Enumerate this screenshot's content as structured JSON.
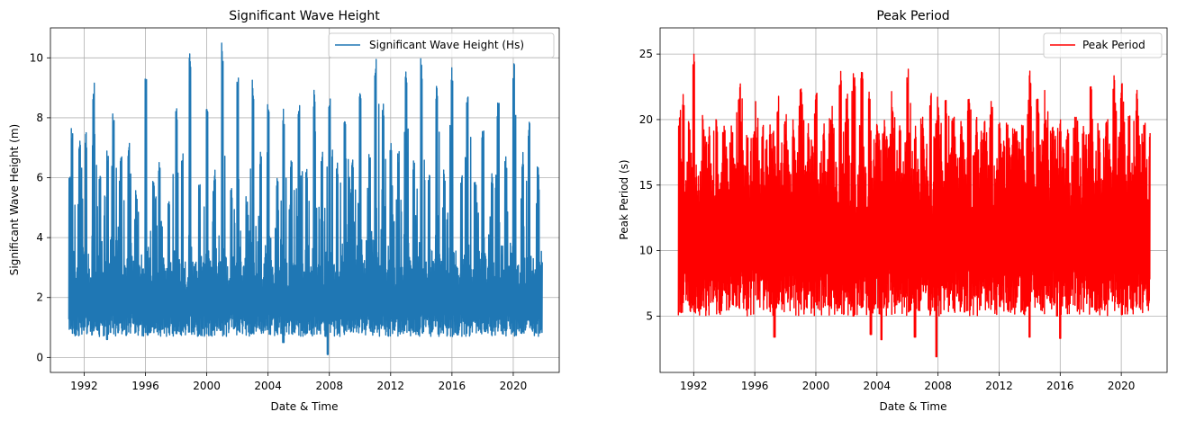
{
  "chart_data": [
    {
      "type": "line",
      "title": "Significant Wave Height",
      "xlabel": "Date & Time",
      "ylabel": "Significant Wave Height (m)",
      "xlim": [
        1989.8,
        2023.0
      ],
      "ylim": [
        -0.5,
        11.0
      ],
      "xticks": [
        1992,
        1996,
        2000,
        2004,
        2008,
        2012,
        2016,
        2020
      ],
      "yticks": [
        0,
        2,
        4,
        6,
        8,
        10
      ],
      "grid": true,
      "legend_position": "top-right",
      "series": [
        {
          "name": "Significant Wave Height (Hs)",
          "color": "#1f77b4",
          "x_range": [
            1991.0,
            2021.9
          ],
          "baseline_min": 0.7,
          "baseline_max": 3.0,
          "peaks": [
            [
              1991.0,
              6.3
            ],
            [
              1991.2,
              7.7
            ],
            [
              1991.7,
              7.4
            ],
            [
              1992.1,
              7.5
            ],
            [
              1992.6,
              9.2
            ],
            [
              1993.0,
              6.4
            ],
            [
              1993.5,
              6.9
            ],
            [
              1993.9,
              8.3
            ],
            [
              1994.4,
              6.7
            ],
            [
              1994.9,
              7.2
            ],
            [
              1995.4,
              5.6
            ],
            [
              1996.0,
              9.5
            ],
            [
              1996.5,
              6.0
            ],
            [
              1996.9,
              6.6
            ],
            [
              1997.5,
              5.3
            ],
            [
              1998.0,
              8.3
            ],
            [
              1998.4,
              6.9
            ],
            [
              1998.9,
              10.4
            ],
            [
              1999.5,
              5.9
            ],
            [
              2000.0,
              8.9
            ],
            [
              2000.5,
              6.3
            ],
            [
              2001.0,
              10.5
            ],
            [
              2001.6,
              5.7
            ],
            [
              2002.0,
              9.4
            ],
            [
              2002.6,
              5.4
            ],
            [
              2003.0,
              9.3
            ],
            [
              2003.5,
              6.9
            ],
            [
              2004.0,
              8.6
            ],
            [
              2004.6,
              6.2
            ],
            [
              2005.0,
              8.3
            ],
            [
              2005.5,
              6.6
            ],
            [
              2006.0,
              8.6
            ],
            [
              2006.5,
              6.5
            ],
            [
              2007.0,
              9.0
            ],
            [
              2007.5,
              6.9
            ],
            [
              2008.0,
              8.7
            ],
            [
              2008.5,
              6.6
            ],
            [
              2009.0,
              8.3
            ],
            [
              2009.5,
              6.8
            ],
            [
              2010.0,
              9.3
            ],
            [
              2010.6,
              6.8
            ],
            [
              2011.0,
              10.1
            ],
            [
              2011.5,
              8.6
            ],
            [
              2012.0,
              7.3
            ],
            [
              2012.5,
              7.0
            ],
            [
              2013.0,
              9.9
            ],
            [
              2013.5,
              6.6
            ],
            [
              2014.0,
              10.0
            ],
            [
              2014.5,
              6.2
            ],
            [
              2015.0,
              9.3
            ],
            [
              2015.5,
              6.3
            ],
            [
              2016.0,
              9.8
            ],
            [
              2016.6,
              6.2
            ],
            [
              2017.0,
              8.7
            ],
            [
              2017.5,
              6.0
            ],
            [
              2018.0,
              7.7
            ],
            [
              2018.6,
              6.3
            ],
            [
              2019.0,
              8.5
            ],
            [
              2019.5,
              6.7
            ],
            [
              2020.0,
              10.0
            ],
            [
              2020.6,
              6.9
            ],
            [
              2021.0,
              8.0
            ],
            [
              2021.6,
              6.4
            ]
          ],
          "dips": [
            [
              2007.9,
              0.1
            ],
            [
              2005.0,
              0.5
            ],
            [
              1993.5,
              0.6
            ]
          ]
        }
      ]
    },
    {
      "type": "line",
      "title": "Peak Period",
      "xlabel": "Date & Time",
      "ylabel": "Peak Period (s)",
      "xlim": [
        1989.8,
        2023.0
      ],
      "ylim": [
        0.7,
        27.0
      ],
      "xticks": [
        1992,
        1996,
        2000,
        2004,
        2008,
        2012,
        2016,
        2020
      ],
      "yticks": [
        5,
        10,
        15,
        20,
        25
      ],
      "grid": true,
      "legend_position": "top-right",
      "series": [
        {
          "name": "Peak Period",
          "color": "#ff0000",
          "x_range": [
            1991.0,
            2021.9
          ],
          "baseline_min": 5.0,
          "baseline_max": 16.0,
          "peaks": [
            [
              1991.0,
              20.3
            ],
            [
              1991.3,
              22.1
            ],
            [
              1991.7,
              20.0
            ],
            [
              1992.0,
              26.0
            ],
            [
              1992.6,
              20.4
            ],
            [
              1993.0,
              19.6
            ],
            [
              1993.5,
              20.0
            ],
            [
              1994.0,
              19.9
            ],
            [
              1994.5,
              20.0
            ],
            [
              1995.0,
              23.0
            ],
            [
              1995.5,
              19.5
            ],
            [
              1996.0,
              20.0
            ],
            [
              1996.5,
              19.8
            ],
            [
              1997.0,
              19.9
            ],
            [
              1997.5,
              22.3
            ],
            [
              1998.0,
              19.7
            ],
            [
              1998.5,
              20.0
            ],
            [
              1999.0,
              22.5
            ],
            [
              1999.5,
              19.7
            ],
            [
              2000.0,
              22.5
            ],
            [
              2000.5,
              19.9
            ],
            [
              2001.0,
              20.2
            ],
            [
              2001.6,
              24.3
            ],
            [
              2002.0,
              22.0
            ],
            [
              2002.5,
              24.0
            ],
            [
              2003.0,
              24.2
            ],
            [
              2003.5,
              22.5
            ],
            [
              2004.0,
              20.0
            ],
            [
              2004.5,
              20.0
            ],
            [
              2005.0,
              22.3
            ],
            [
              2005.5,
              20.0
            ],
            [
              2006.0,
              24.0
            ],
            [
              2006.5,
              20.0
            ],
            [
              2007.0,
              20.2
            ],
            [
              2007.5,
              22.0
            ],
            [
              2008.0,
              21.0
            ],
            [
              2008.5,
              21.6
            ],
            [
              2009.0,
              20.2
            ],
            [
              2009.5,
              20.0
            ],
            [
              2010.0,
              22.0
            ],
            [
              2010.5,
              20.2
            ],
            [
              2011.0,
              20.0
            ],
            [
              2011.5,
              22.0
            ],
            [
              2012.0,
              19.8
            ],
            [
              2012.5,
              20.0
            ],
            [
              2013.0,
              20.1
            ],
            [
              2013.5,
              20.0
            ],
            [
              2014.0,
              24.3
            ],
            [
              2014.5,
              22.3
            ],
            [
              2015.0,
              20.2
            ],
            [
              2015.5,
              19.9
            ],
            [
              2016.0,
              20.0
            ],
            [
              2016.5,
              20.0
            ],
            [
              2017.0,
              20.2
            ],
            [
              2017.5,
              19.8
            ],
            [
              2018.0,
              22.5
            ],
            [
              2018.5,
              20.0
            ],
            [
              2019.0,
              20.0
            ],
            [
              2019.5,
              23.4
            ],
            [
              2020.0,
              23.3
            ],
            [
              2020.5,
              20.4
            ],
            [
              2021.0,
              22.3
            ],
            [
              2021.5,
              20.0
            ]
          ],
          "dips": [
            [
              2007.9,
              1.9
            ],
            [
              2006.5,
              3.4
            ],
            [
              2004.3,
              3.2
            ],
            [
              1997.3,
              3.4
            ],
            [
              2014.0,
              3.4
            ],
            [
              2016.0,
              3.3
            ],
            [
              2003.6,
              3.6
            ]
          ]
        }
      ]
    }
  ]
}
